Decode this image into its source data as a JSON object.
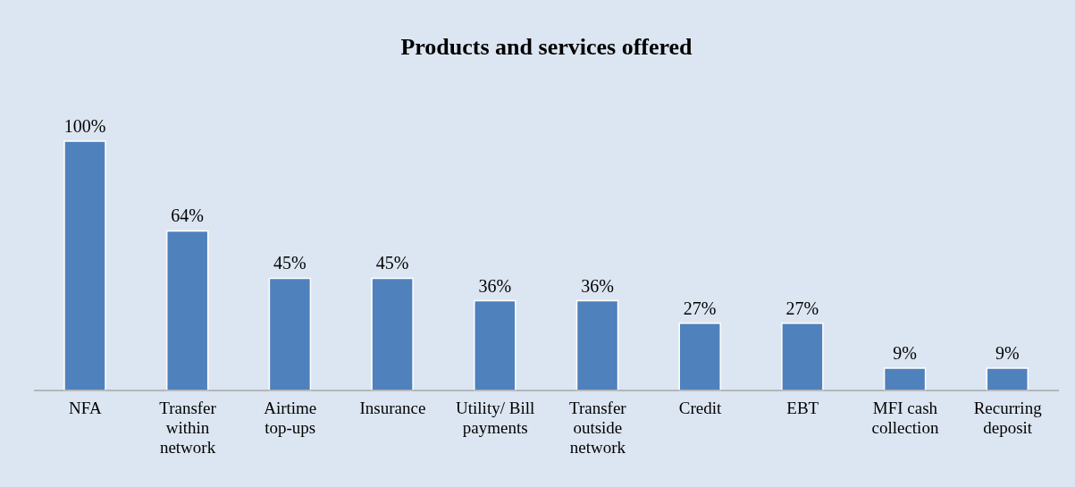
{
  "chart_data": {
    "type": "bar",
    "title": "Products and services offered",
    "categories": [
      "NFA",
      "Transfer within network",
      "Airtime top-ups",
      "Insurance",
      "Utility/ Bill payments",
      "Transfer outside network",
      "Credit",
      "EBT",
      "MFI cash collection",
      "Recurring deposit"
    ],
    "values": [
      100,
      64,
      45,
      45,
      36,
      36,
      27,
      27,
      9,
      9
    ],
    "value_labels": [
      "100%",
      "64%",
      "45%",
      "45%",
      "36%",
      "36%",
      "27%",
      "27%",
      "9%",
      "9%"
    ],
    "color": "#4f81bd",
    "grid": false,
    "legend": false
  }
}
